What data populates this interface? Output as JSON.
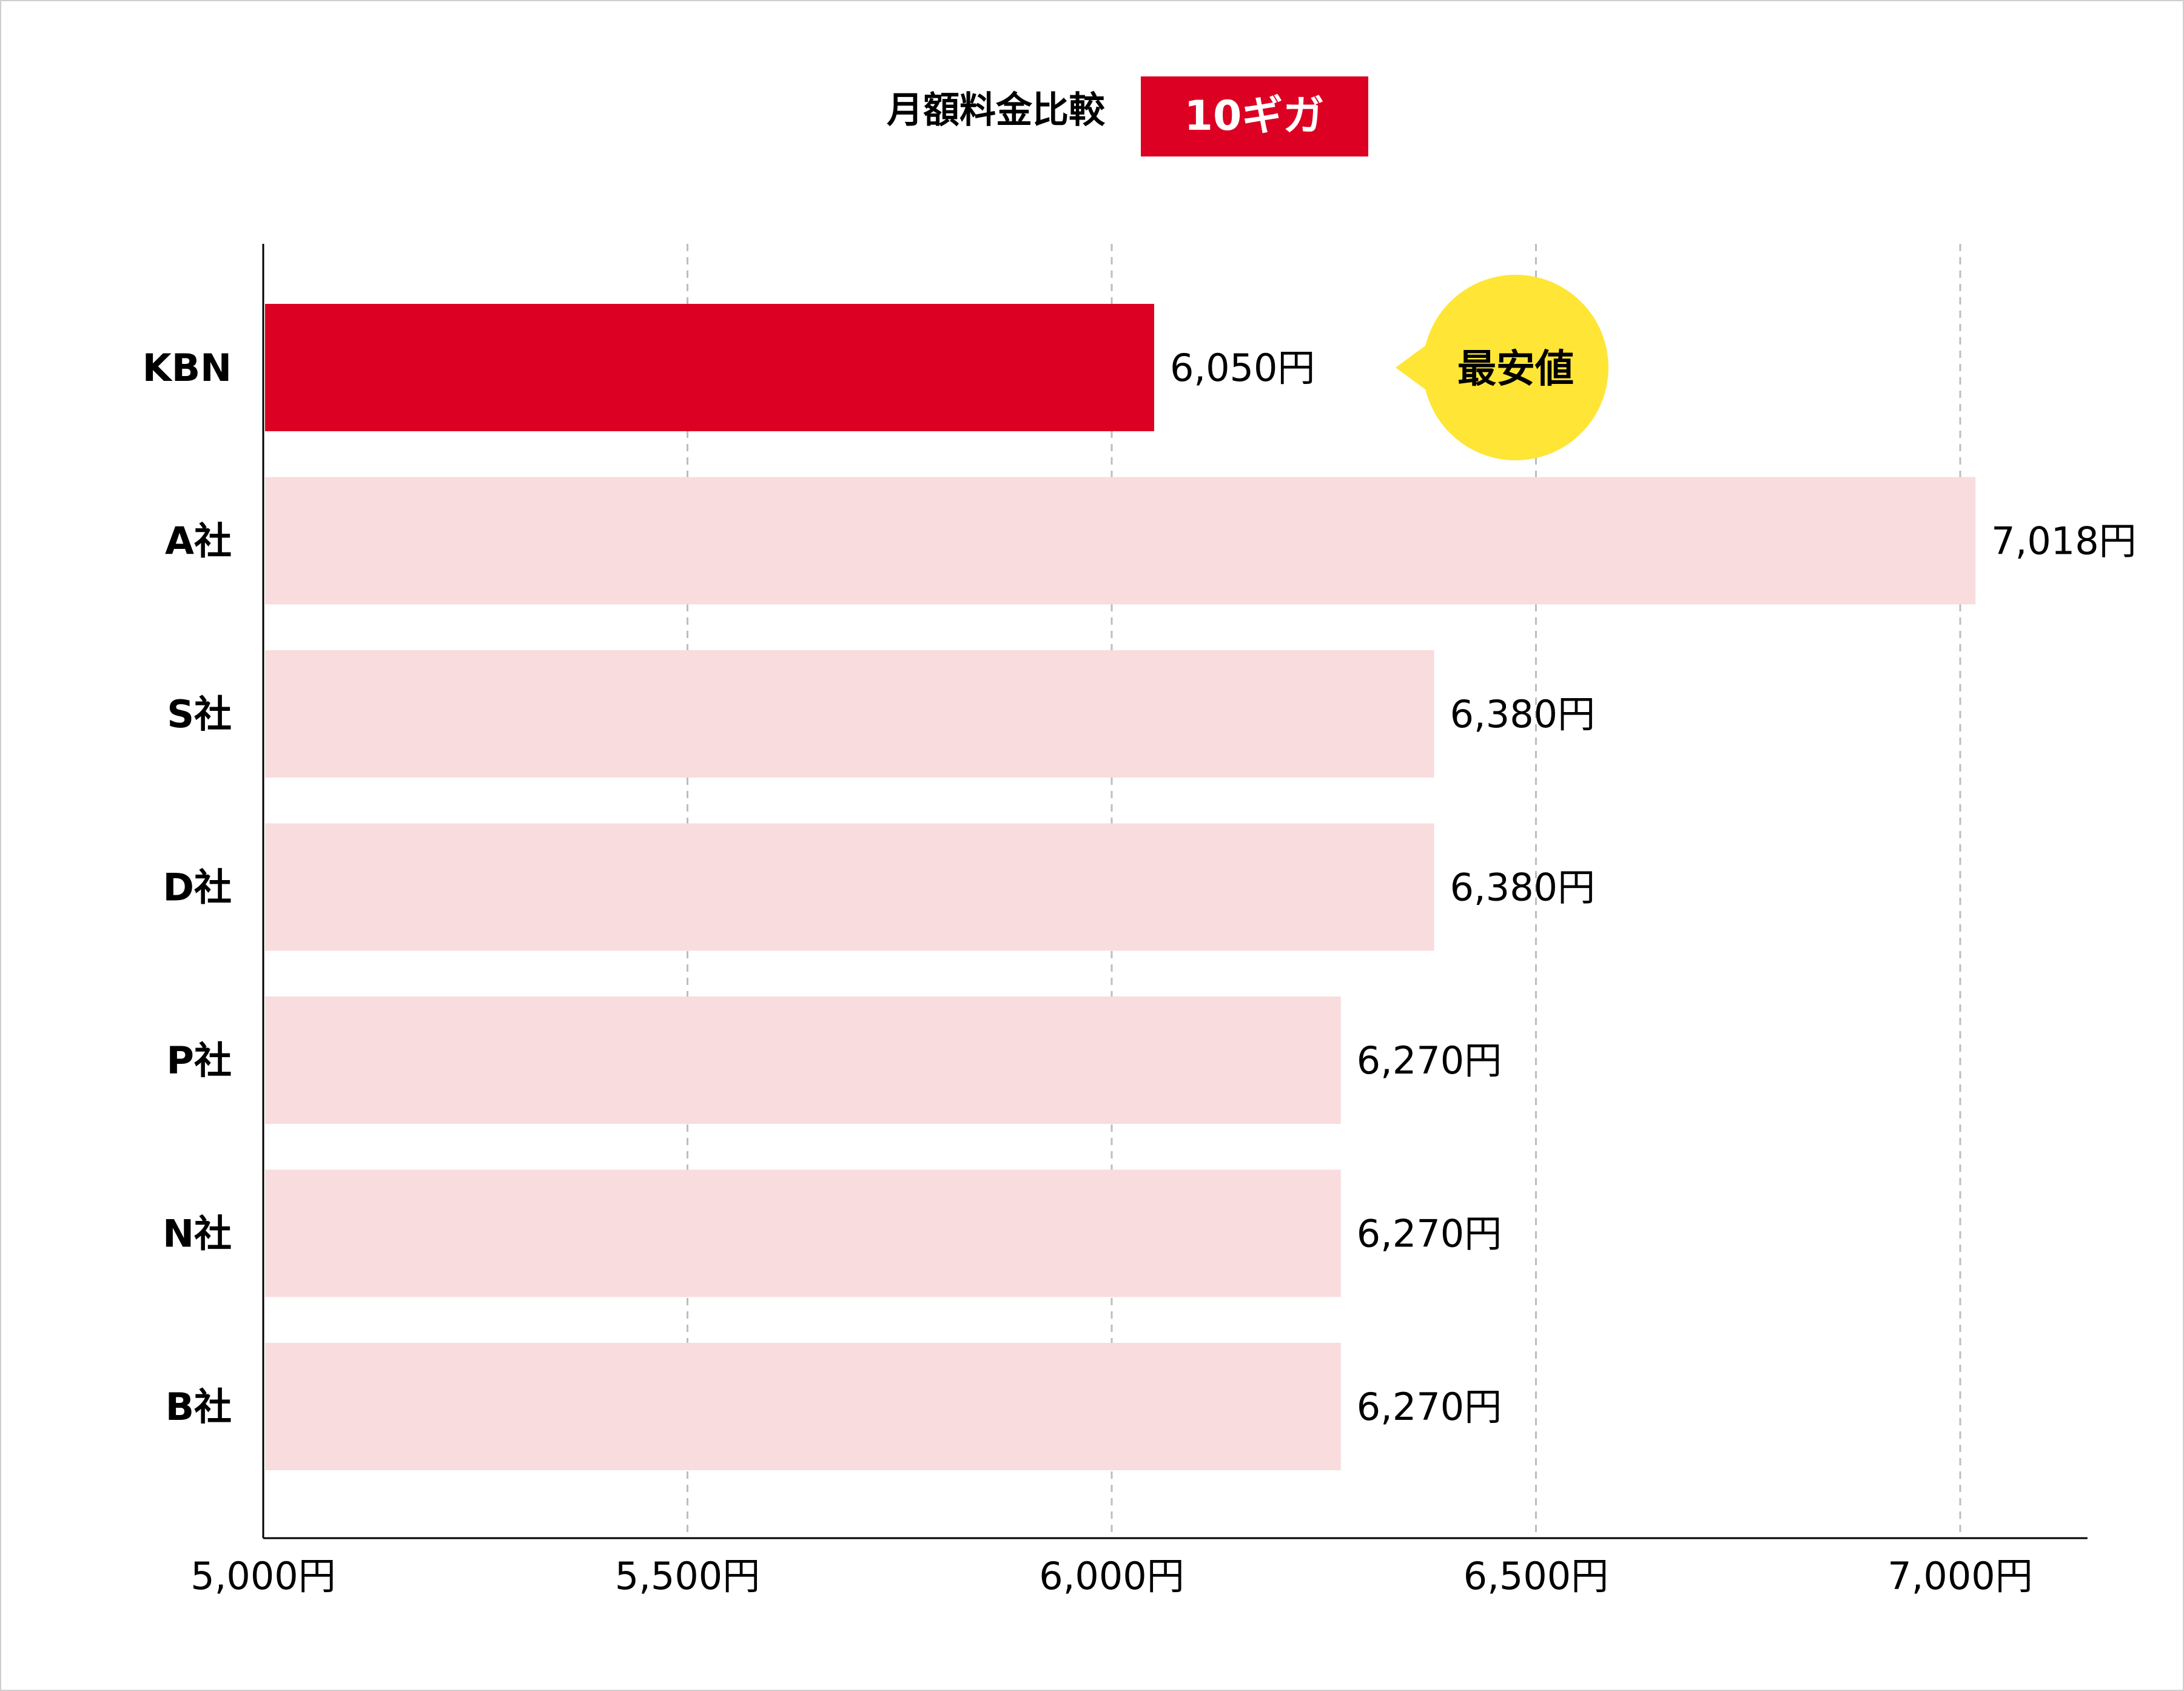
{
  "chart_data": {
    "type": "bar",
    "orientation": "horizontal",
    "title": "月額料金比較",
    "badge": "10ギガ",
    "categories": [
      "KBN",
      "A社",
      "S社",
      "D社",
      "P社",
      "N社",
      "B社"
    ],
    "values": [
      6050,
      7018,
      6380,
      6380,
      6270,
      6270,
      6270
    ],
    "value_labels": [
      "6,050円",
      "7,018円",
      "6,380円",
      "6,380円",
      "6,270円",
      "6,270円",
      "6,270円"
    ],
    "highlight_index": 0,
    "callout": "最安値",
    "xlim": [
      5000,
      7150
    ],
    "xticks": [
      5000,
      5500,
      6000,
      6500,
      7000
    ],
    "xtick_labels": [
      "5,000円",
      "5,500円",
      "6,000円",
      "6,500円",
      "7,000円"
    ],
    "grid": "vertical-dashed",
    "colors": {
      "highlight": "#dc0023",
      "bar": "#f9dcdd",
      "badge_bg": "#dc0023",
      "badge_text": "#ffffff",
      "callout_bg": "#ffe535",
      "grid": "#bdbdbd",
      "axis": "#000000",
      "text": "#000000"
    }
  }
}
